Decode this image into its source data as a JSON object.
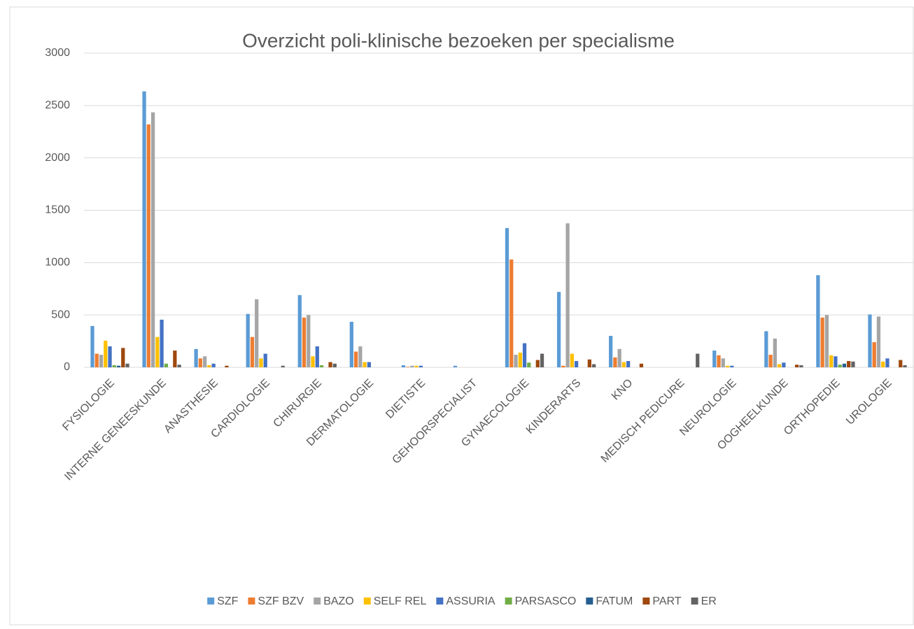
{
  "chart_data": {
    "type": "bar",
    "title": "Overzicht poli-klinische bezoeken per specialisme",
    "categories": [
      "FYSIOLOGIE",
      "INTERNE GENEESKUNDE",
      "ANASTHESIE",
      "CARDIOLOGIE",
      "CHIRURGIE",
      "DERMATOLOGIE",
      "DIETISTE",
      "GEHOORSPECIALIST",
      "GYNAECOLOGIE",
      "KINDERARTS",
      "KNO",
      "MEDISCH PEDICURE",
      "NEUROLOGIE",
      "OOGHEELKUNDE",
      "ORTHOPEDIE",
      "UROLOGIE"
    ],
    "series": [
      {
        "name": "SZF",
        "color": "#5b9bd5",
        "values": [
          395,
          2635,
          175,
          510,
          690,
          435,
          20,
          15,
          1330,
          720,
          300,
          0,
          160,
          345,
          880,
          505
        ]
      },
      {
        "name": "SZF BZV",
        "color": "#ed7d31",
        "values": [
          130,
          2320,
          85,
          290,
          475,
          150,
          5,
          0,
          1030,
          15,
          95,
          0,
          115,
          120,
          475,
          240
        ]
      },
      {
        "name": "BAZO",
        "color": "#a5a5a5",
        "values": [
          120,
          2435,
          105,
          650,
          500,
          200,
          15,
          0,
          120,
          1375,
          175,
          0,
          85,
          275,
          500,
          485
        ]
      },
      {
        "name": "SELF REL",
        "color": "#ffc000",
        "values": [
          255,
          290,
          20,
          85,
          105,
          50,
          15,
          0,
          140,
          130,
          50,
          0,
          15,
          30,
          115,
          55
        ]
      },
      {
        "name": "ASSURIA",
        "color": "#4472c4",
        "values": [
          200,
          455,
          35,
          130,
          200,
          50,
          15,
          0,
          230,
          60,
          60,
          0,
          15,
          45,
          105,
          85
        ]
      },
      {
        "name": "PARSASCO",
        "color": "#70ad47",
        "values": [
          20,
          35,
          0,
          0,
          20,
          0,
          0,
          0,
          45,
          0,
          0,
          0,
          0,
          0,
          25,
          0
        ]
      },
      {
        "name": "FATUM",
        "color": "#255e91",
        "values": [
          15,
          0,
          0,
          0,
          0,
          0,
          0,
          0,
          0,
          0,
          0,
          0,
          0,
          0,
          35,
          0
        ]
      },
      {
        "name": "PART",
        "color": "#9e480e",
        "values": [
          185,
          160,
          15,
          0,
          50,
          0,
          0,
          0,
          70,
          75,
          35,
          0,
          0,
          25,
          60,
          70
        ]
      },
      {
        "name": "ER",
        "color": "#636363",
        "values": [
          35,
          25,
          0,
          15,
          35,
          0,
          0,
          0,
          130,
          30,
          0,
          130,
          0,
          20,
          55,
          20
        ]
      }
    ],
    "ylim": [
      0,
      3000
    ],
    "yticks": [
      0,
      500,
      1000,
      1500,
      2000,
      2500,
      3000
    ],
    "grid": true,
    "legend": "bottom"
  }
}
